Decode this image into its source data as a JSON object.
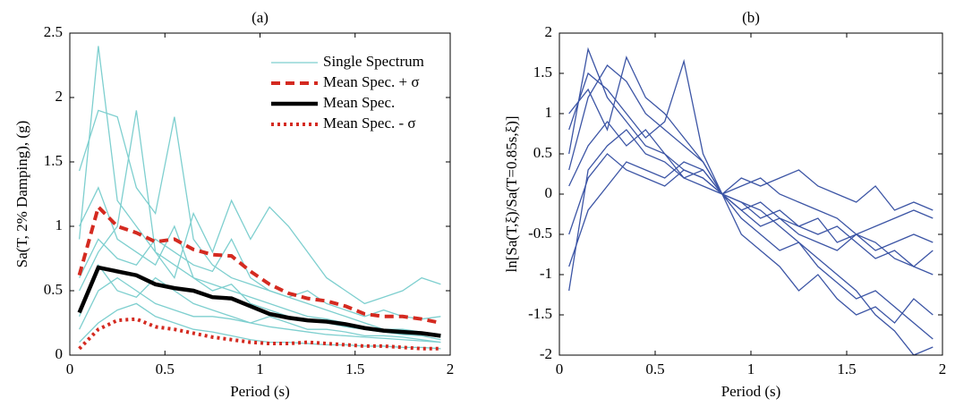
{
  "chart_data": [
    {
      "type": "line",
      "title": "(a)",
      "xlabel": "Period (s)",
      "ylabel": "Sa(T, 2% Damping), (g)",
      "x": [
        0.05,
        0.15,
        0.25,
        0.35,
        0.45,
        0.55,
        0.65,
        0.75,
        0.85,
        0.95,
        1.05,
        1.15,
        1.25,
        1.35,
        1.45,
        1.55,
        1.65,
        1.75,
        1.85,
        1.95
      ],
      "xlim": [
        0,
        2
      ],
      "ylim": [
        0,
        2.5
      ],
      "xticks": [
        0,
        0.5,
        1,
        1.5,
        2
      ],
      "yticks": [
        0,
        0.5,
        1,
        1.5,
        2,
        2.5
      ],
      "legend": "upper right",
      "series": [
        {
          "name": "Single Spectrum",
          "color": "#7ecfcf",
          "linestyle": "solid",
          "linewidth": 1.3,
          "values": [
            0.9,
            2.4,
            1.2,
            1.0,
            0.8,
            0.7,
            0.6,
            0.55,
            0.5,
            0.45,
            0.4,
            0.35,
            0.3,
            0.28,
            0.25,
            0.2,
            0.18,
            0.16,
            0.15,
            0.12
          ]
        },
        {
          "color": "#7ecfcf",
          "linestyle": "solid",
          "linewidth": 1.3,
          "values": [
            1.43,
            1.9,
            1.85,
            1.3,
            1.1,
            1.85,
            0.9,
            0.7,
            0.6,
            0.55,
            0.5,
            0.45,
            0.4,
            0.35,
            0.3,
            0.25,
            0.2,
            0.2,
            0.18,
            0.15
          ]
        },
        {
          "color": "#7ecfcf",
          "linestyle": "solid",
          "linewidth": 1.3,
          "values": [
            0.5,
            0.8,
            1.0,
            1.9,
            0.8,
            0.6,
            1.1,
            0.8,
            1.2,
            0.9,
            1.15,
            1.0,
            0.8,
            0.6,
            0.5,
            0.4,
            0.45,
            0.5,
            0.6,
            0.55
          ]
        },
        {
          "color": "#7ecfcf",
          "linestyle": "solid",
          "linewidth": 1.3,
          "values": [
            0.2,
            0.5,
            0.6,
            0.5,
            0.4,
            0.35,
            0.3,
            0.3,
            0.28,
            0.25,
            0.22,
            0.2,
            0.18,
            0.16,
            0.15,
            0.14,
            0.13,
            0.12,
            0.11,
            0.1
          ]
        },
        {
          "color": "#7ecfcf",
          "linestyle": "solid",
          "linewidth": 1.3,
          "values": [
            0.1,
            0.25,
            0.35,
            0.4,
            0.3,
            0.25,
            0.2,
            0.18,
            0.15,
            0.12,
            0.1,
            0.1,
            0.09,
            0.08,
            0.08,
            0.07,
            0.07,
            0.06,
            0.06,
            0.05
          ]
        },
        {
          "color": "#7ecfcf",
          "linestyle": "solid",
          "linewidth": 1.3,
          "values": [
            0.6,
            0.9,
            0.75,
            0.7,
            0.9,
            0.8,
            0.7,
            0.65,
            0.9,
            0.6,
            0.5,
            0.45,
            0.5,
            0.4,
            0.35,
            0.3,
            0.35,
            0.3,
            0.28,
            0.3
          ]
        },
        {
          "color": "#7ecfcf",
          "linestyle": "solid",
          "linewidth": 1.3,
          "values": [
            0.3,
            0.7,
            0.5,
            0.45,
            0.6,
            0.5,
            0.4,
            0.35,
            0.3,
            0.25,
            0.3,
            0.25,
            0.2,
            0.2,
            0.18,
            0.15,
            0.15,
            0.14,
            0.12,
            0.1
          ]
        },
        {
          "color": "#7ecfcf",
          "linestyle": "solid",
          "linewidth": 1.3,
          "values": [
            1.0,
            1.3,
            0.9,
            0.8,
            0.7,
            1.0,
            0.6,
            0.5,
            0.55,
            0.4,
            0.35,
            0.3,
            0.28,
            0.25,
            0.22,
            0.2,
            0.18,
            0.17,
            0.16,
            0.14
          ]
        },
        {
          "name": "Mean Spec. + σ",
          "color": "#d42a20",
          "linestyle": "dashed",
          "linewidth": 4,
          "values": [
            0.62,
            1.15,
            1.0,
            0.95,
            0.88,
            0.9,
            0.82,
            0.78,
            0.77,
            0.65,
            0.55,
            0.48,
            0.44,
            0.42,
            0.38,
            0.32,
            0.3,
            0.3,
            0.28,
            0.25
          ]
        },
        {
          "name": "Mean Spec.",
          "color": "#000000",
          "linestyle": "solid",
          "linewidth": 4.5,
          "values": [
            0.33,
            0.68,
            0.65,
            0.62,
            0.55,
            0.52,
            0.5,
            0.45,
            0.44,
            0.38,
            0.32,
            0.29,
            0.27,
            0.26,
            0.24,
            0.21,
            0.19,
            0.18,
            0.17,
            0.15
          ]
        },
        {
          "name": "Mean Spec. - σ",
          "color": "#d42a20",
          "linestyle": "dotted",
          "linewidth": 4,
          "values": [
            0.05,
            0.2,
            0.27,
            0.28,
            0.22,
            0.2,
            0.17,
            0.14,
            0.12,
            0.1,
            0.09,
            0.09,
            0.1,
            0.09,
            0.08,
            0.07,
            0.07,
            0.06,
            0.05,
            0.05
          ]
        }
      ]
    },
    {
      "type": "line",
      "title": "(b)",
      "xlabel": "Period (s)",
      "ylabel": "ln[Sa(T,ξ)/Sa(T=0.85s,ξ)]",
      "x": [
        0.05,
        0.15,
        0.25,
        0.35,
        0.45,
        0.55,
        0.65,
        0.75,
        0.85,
        0.95,
        1.05,
        1.15,
        1.25,
        1.35,
        1.45,
        1.55,
        1.65,
        1.75,
        1.85,
        1.95
      ],
      "xlim": [
        0,
        2
      ],
      "ylim": [
        -2,
        2
      ],
      "xticks": [
        0,
        0.5,
        1,
        1.5,
        2
      ],
      "yticks": [
        -2,
        -1.5,
        -1,
        -0.5,
        0,
        0.5,
        1,
        1.5,
        2
      ],
      "series": [
        {
          "color": "#3c55a5",
          "linestyle": "solid",
          "linewidth": 1.3,
          "values": [
            0.5,
            1.8,
            1.2,
            0.9,
            0.6,
            0.5,
            0.3,
            0.2,
            0,
            -0.1,
            -0.2,
            -0.4,
            -0.6,
            -0.8,
            -1.0,
            -1.2,
            -1.5,
            -1.7,
            -2,
            -1.9
          ]
        },
        {
          "color": "#3c55a5",
          "linestyle": "solid",
          "linewidth": 1.3,
          "values": [
            -1.2,
            0.3,
            0.6,
            0.8,
            0.5,
            0.4,
            0.2,
            0.1,
            0,
            0.1,
            0.2,
            0,
            -0.1,
            -0.2,
            -0.3,
            -0.5,
            -0.4,
            -0.3,
            -0.2,
            -0.3
          ]
        },
        {
          "color": "#3c55a5",
          "linestyle": "solid",
          "linewidth": 1.3,
          "values": [
            0.8,
            1.5,
            1.3,
            1.0,
            0.7,
            0.9,
            1.65,
            0.5,
            0,
            -0.2,
            -0.4,
            -0.3,
            -0.5,
            -0.6,
            -0.7,
            -0.5,
            -0.6,
            -0.8,
            -0.9,
            -1.0
          ]
        },
        {
          "color": "#3c55a5",
          "linestyle": "solid",
          "linewidth": 1.3,
          "values": [
            -0.5,
            0.2,
            0.5,
            0.3,
            0.2,
            0.1,
            0.3,
            0.2,
            0,
            -0.3,
            -0.5,
            -0.7,
            -0.6,
            -0.9,
            -1.1,
            -1.3,
            -1.2,
            -1.4,
            -1.6,
            -1.8
          ]
        },
        {
          "color": "#3c55a5",
          "linestyle": "solid",
          "linewidth": 1.3,
          "values": [
            0.3,
            1.2,
            1.6,
            1.4,
            1.0,
            0.8,
            0.6,
            0.4,
            0,
            0.2,
            0.1,
            0.2,
            0.3,
            0.1,
            0,
            -0.1,
            0.1,
            -0.2,
            -0.1,
            -0.2
          ]
        },
        {
          "color": "#3c55a5",
          "linestyle": "solid",
          "linewidth": 1.3,
          "values": [
            -0.9,
            -0.2,
            0.1,
            0.4,
            0.3,
            0.2,
            0.4,
            0.3,
            0,
            -0.2,
            -0.1,
            -0.3,
            -0.4,
            -0.3,
            -0.6,
            -0.5,
            -0.7,
            -0.6,
            -0.5,
            -0.6
          ]
        },
        {
          "color": "#3c55a5",
          "linestyle": "solid",
          "linewidth": 1.3,
          "values": [
            1.0,
            1.3,
            0.8,
            1.7,
            1.2,
            1.0,
            0.7,
            0.4,
            0,
            -0.5,
            -0.7,
            -0.9,
            -1.2,
            -1.0,
            -1.3,
            -1.5,
            -1.4,
            -1.6,
            -1.3,
            -1.5
          ]
        },
        {
          "color": "#3c55a5",
          "linestyle": "solid",
          "linewidth": 1.3,
          "values": [
            0.1,
            0.6,
            0.9,
            0.6,
            0.8,
            0.5,
            0.2,
            0.3,
            0,
            -0.1,
            -0.3,
            -0.2,
            -0.4,
            -0.5,
            -0.4,
            -0.6,
            -0.8,
            -0.7,
            -0.9,
            -0.7
          ]
        }
      ]
    }
  ]
}
